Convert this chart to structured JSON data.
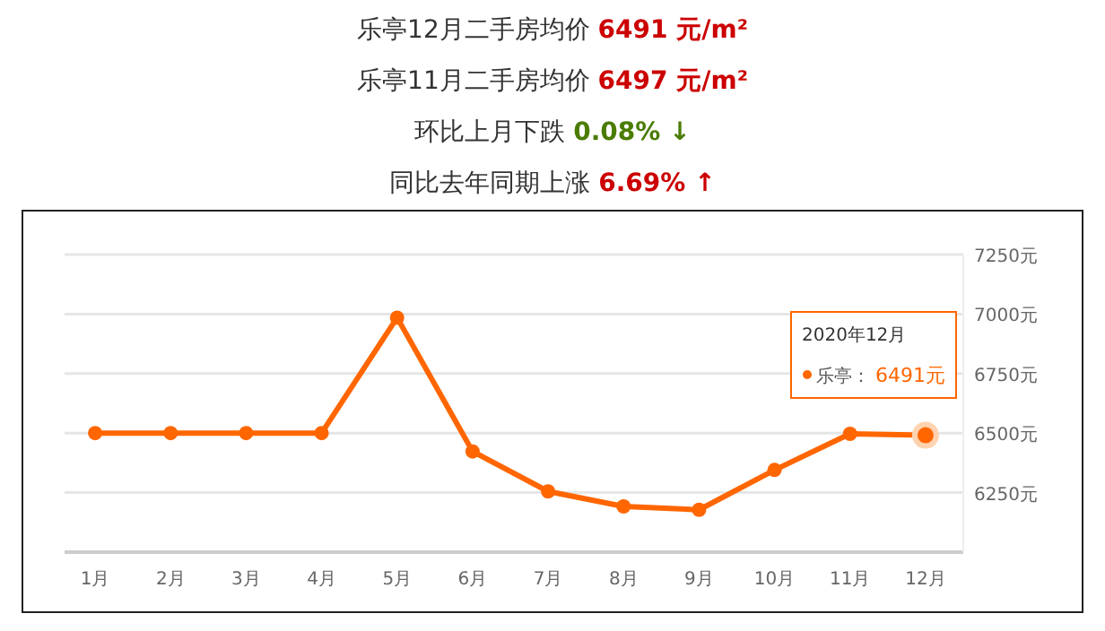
{
  "chart_data": {
    "type": "line",
    "title": "乐亭12月二手房均价 6491 元/m²",
    "subtitle": "乐亭11月二手房均价 6497 元/m²",
    "annotations": [
      "环比上月下跌 0.08% ↓",
      "同比去年同期上涨 6.69% ↑",
      "2020年12月"
    ],
    "categories": [
      "1月",
      "2月",
      "3月",
      "4月",
      "5月",
      "6月",
      "7月",
      "8月",
      "9月",
      "10月",
      "11月",
      "12月"
    ],
    "series": [
      {
        "name": "乐亭：",
        "color": "#ff6600",
        "values": [
          6500,
          6500,
          6500,
          6500,
          6985,
          6423,
          6255,
          6192,
          6178,
          6345,
          6497,
          6491
        ],
        "value_labels": [
          null,
          null,
          null,
          null,
          null,
          null,
          null,
          null,
          null,
          null,
          null,
          "6491元"
        ]
      }
    ],
    "ylim": [
      6000,
      7250
    ],
    "yticks": [
      {
        "value": 6000,
        "label": null
      },
      {
        "value": 6250,
        "label": "6250元"
      },
      {
        "value": 6500,
        "label": "6500元"
      },
      {
        "value": 6750,
        "label": "6750元"
      },
      {
        "value": 7000,
        "label": "7000元"
      },
      {
        "value": 7250,
        "label": "7250元"
      }
    ],
    "grid": "y",
    "marker": "circle",
    "line_style": "solid",
    "legend": "right"
  }
}
